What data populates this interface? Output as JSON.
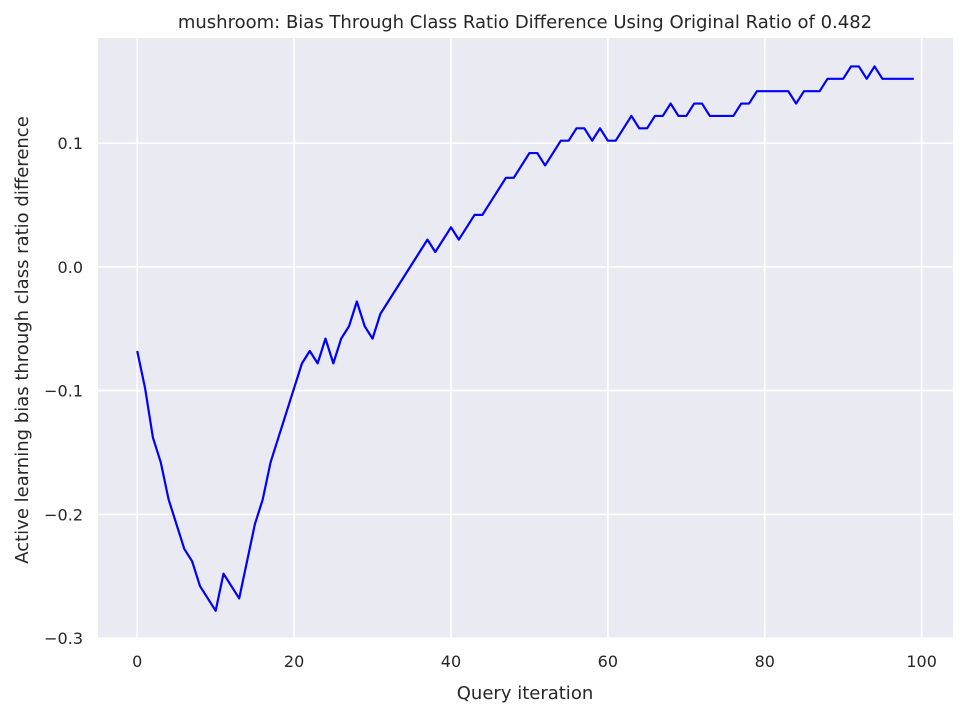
{
  "chart_data": {
    "type": "line",
    "title": "mushroom: Bias Through Class Ratio Difference Using Original Ratio of 0.482",
    "xlabel": "Query iteration",
    "ylabel": "Active learning bias through class ratio difference",
    "xlim": [
      -5,
      104
    ],
    "ylim": [
      -0.3,
      0.185
    ],
    "xticks": [
      0,
      20,
      40,
      60,
      80,
      100
    ],
    "xtick_labels": [
      "0",
      "20",
      "40",
      "60",
      "80",
      "100"
    ],
    "yticks": [
      -0.3,
      -0.2,
      -0.1,
      0.0,
      0.1
    ],
    "ytick_labels": [
      "−0.3",
      "−0.2",
      "−0.1",
      "0.0",
      "0.1"
    ],
    "grid": true,
    "background": "#EAEAF2",
    "series": [
      {
        "color": "#0000FF",
        "x": [
          0,
          1,
          2,
          3,
          4,
          5,
          6,
          7,
          8,
          9,
          10,
          11,
          12,
          13,
          14,
          15,
          16,
          17,
          18,
          19,
          20,
          21,
          22,
          23,
          24,
          25,
          26,
          27,
          28,
          29,
          30,
          31,
          32,
          33,
          34,
          35,
          36,
          37,
          38,
          39,
          40,
          41,
          42,
          43,
          44,
          45,
          46,
          47,
          48,
          49,
          50,
          51,
          52,
          53,
          54,
          55,
          56,
          57,
          58,
          59,
          60,
          61,
          62,
          63,
          64,
          65,
          66,
          67,
          68,
          69,
          70,
          71,
          72,
          73,
          74,
          75,
          76,
          77,
          78,
          79,
          80,
          81,
          82,
          83,
          84,
          85,
          86,
          87,
          88,
          89,
          90,
          91,
          92,
          93,
          94,
          95,
          96,
          97,
          98,
          99
        ],
        "y": [
          -0.068,
          -0.098,
          -0.138,
          -0.158,
          -0.188,
          -0.208,
          -0.228,
          -0.238,
          -0.258,
          -0.268,
          -0.278,
          -0.248,
          -0.258,
          -0.268,
          -0.238,
          -0.208,
          -0.188,
          -0.158,
          -0.138,
          -0.118,
          -0.098,
          -0.078,
          -0.068,
          -0.078,
          -0.058,
          -0.078,
          -0.058,
          -0.048,
          -0.028,
          -0.048,
          -0.058,
          -0.038,
          -0.028,
          -0.018,
          -0.008,
          0.002,
          0.012,
          0.022,
          0.012,
          0.022,
          0.032,
          0.022,
          0.032,
          0.042,
          0.042,
          0.052,
          0.062,
          0.072,
          0.072,
          0.082,
          0.092,
          0.092,
          0.082,
          0.092,
          0.102,
          0.102,
          0.112,
          0.112,
          0.102,
          0.112,
          0.102,
          0.102,
          0.112,
          0.122,
          0.112,
          0.112,
          0.122,
          0.122,
          0.132,
          0.122,
          0.122,
          0.132,
          0.132,
          0.122,
          0.122,
          0.122,
          0.122,
          0.132,
          0.132,
          0.142,
          0.142,
          0.142,
          0.142,
          0.142,
          0.132,
          0.142,
          0.142,
          0.142,
          0.152,
          0.152,
          0.152,
          0.162,
          0.162,
          0.152,
          0.162,
          0.152,
          0.152,
          0.152,
          0.152,
          0.152
        ]
      }
    ]
  }
}
